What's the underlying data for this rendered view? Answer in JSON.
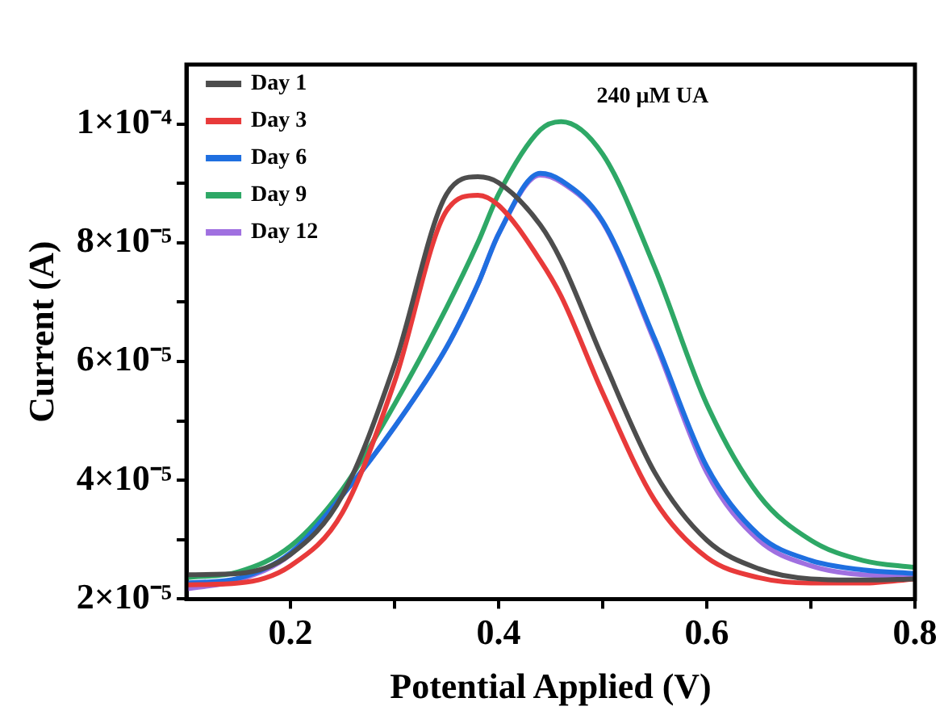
{
  "chart_data": {
    "type": "line",
    "xlabel": "Potential Applied (V)",
    "ylabel": "Current (A)",
    "annotations": [
      "240 μM UA"
    ],
    "x": [
      0.1,
      0.15,
      0.2,
      0.25,
      0.3,
      0.35,
      0.38,
      0.4,
      0.44,
      0.46,
      0.5,
      0.55,
      0.6,
      0.65,
      0.7,
      0.75,
      0.8
    ],
    "series": [
      {
        "name": "Day 1",
        "color": "#4d4d4d",
        "values": [
          2.41e-05,
          2.43e-05,
          2.75e-05,
          3.75e-05,
          5.95e-05,
          8.82e-05,
          9.11e-05,
          9.01e-05,
          8.3e-05,
          7.7e-05,
          6.05e-05,
          4.13e-05,
          2.99e-05,
          2.51e-05,
          2.34e-05,
          2.32e-05,
          2.34e-05
        ]
      },
      {
        "name": "Day 3",
        "color": "#e83a3a",
        "values": [
          2.24e-05,
          2.27e-05,
          2.56e-05,
          3.46e-05,
          5.66e-05,
          8.54e-05,
          8.8e-05,
          8.63e-05,
          7.7e-05,
          7.1e-05,
          5.47e-05,
          3.66e-05,
          2.7e-05,
          2.36e-05,
          2.27e-05,
          2.27e-05,
          2.34e-05
        ]
      },
      {
        "name": "Day 6",
        "color": "#1f6fe0",
        "values": [
          2.27e-05,
          2.35e-05,
          2.78e-05,
          3.75e-05,
          4.9e-05,
          6.24e-05,
          7.3e-05,
          8.15e-05,
          9.17e-05,
          9.05e-05,
          8.36e-05,
          6.38e-05,
          4.23e-05,
          3.08e-05,
          2.65e-05,
          2.49e-05,
          2.43e-05
        ]
      },
      {
        "name": "Day 9",
        "color": "#2ea866",
        "values": [
          2.36e-05,
          2.46e-05,
          2.89e-05,
          3.85e-05,
          5.28e-05,
          6.91e-05,
          8e-05,
          8.82e-05,
          9.9e-05,
          0.0001004,
          9.49e-05,
          7.58e-05,
          5.28e-05,
          3.75e-05,
          2.99e-05,
          2.65e-05,
          2.53e-05
        ]
      },
      {
        "name": "Day 12",
        "color": "#a070e0",
        "values": [
          2.17e-05,
          2.32e-05,
          2.75e-05,
          3.75e-05,
          4.9e-05,
          6.24e-05,
          7.3e-05,
          8.15e-05,
          9.14e-05,
          9.02e-05,
          8.34e-05,
          6.33e-05,
          4.13e-05,
          2.99e-05,
          2.56e-05,
          2.41e-05,
          2.39e-05
        ]
      }
    ],
    "xlim": [
      0.1,
      0.8
    ],
    "xticks": [
      0.2,
      {
        "value": 0.3,
        "label": null
      },
      0.4,
      {
        "value": 0.5,
        "label": null
      },
      0.6,
      {
        "value": 0.7,
        "label": null
      },
      0.8
    ],
    "ylim": [
      2e-05,
      0.00011
    ],
    "yticks": [
      {
        "value": 2e-05,
        "label": "2×10⁻⁵"
      },
      {
        "value": 3e-05,
        "label": null
      },
      {
        "value": 4e-05,
        "label": "4×10⁻⁵"
      },
      {
        "value": 5e-05,
        "label": null
      },
      {
        "value": 6e-05,
        "label": "6×10⁻⁵"
      },
      {
        "value": 7e-05,
        "label": null
      },
      {
        "value": 8e-05,
        "label": "8×10⁻⁵"
      },
      {
        "value": 9e-05,
        "label": null
      },
      {
        "value": 0.0001,
        "label": "1×10⁻⁴"
      }
    ],
    "grid": false,
    "legend": "top left",
    "marker": "none",
    "line_style": "solid"
  }
}
